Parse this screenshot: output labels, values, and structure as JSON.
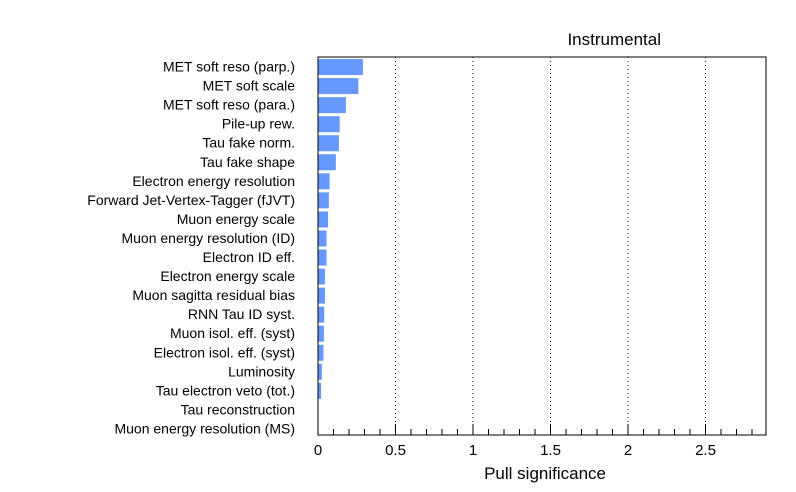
{
  "chart_data": {
    "type": "bar",
    "orientation": "horizontal",
    "title": "Instrumental",
    "xlabel": "Pull significance",
    "ylabel": "",
    "xlim": [
      0,
      2.9
    ],
    "xticks": [
      "0",
      "0.5",
      "1",
      "1.5",
      "2",
      "2.5"
    ],
    "grid": "vertical dotted",
    "bar_color": "#6699ff",
    "categories": [
      "MET soft reso (parp.)",
      "MET soft scale",
      "MET soft reso (para.)",
      "Pile-up rew.",
      "Tau fake norm.",
      "Tau fake shape",
      "Electron energy resolution",
      "Forward Jet-Vertex-Tagger (fJVT)",
      "Muon energy scale",
      "Muon energy resolution (ID)",
      "Electron ID eff.",
      "Electron energy scale",
      "Muon sagitta residual bias",
      "RNN Tau ID syst.",
      "Muon isol. eff. (syst)",
      "Electron isol. eff. (syst)",
      "Luminosity",
      "Tau electron veto (tot.)",
      "Tau reconstruction",
      "Muon energy resolution (MS)"
    ],
    "values": [
      0.29,
      0.26,
      0.18,
      0.14,
      0.135,
      0.115,
      0.075,
      0.07,
      0.065,
      0.055,
      0.055,
      0.045,
      0.045,
      0.04,
      0.038,
      0.035,
      0.025,
      0.02,
      0.003,
      0.002
    ]
  }
}
